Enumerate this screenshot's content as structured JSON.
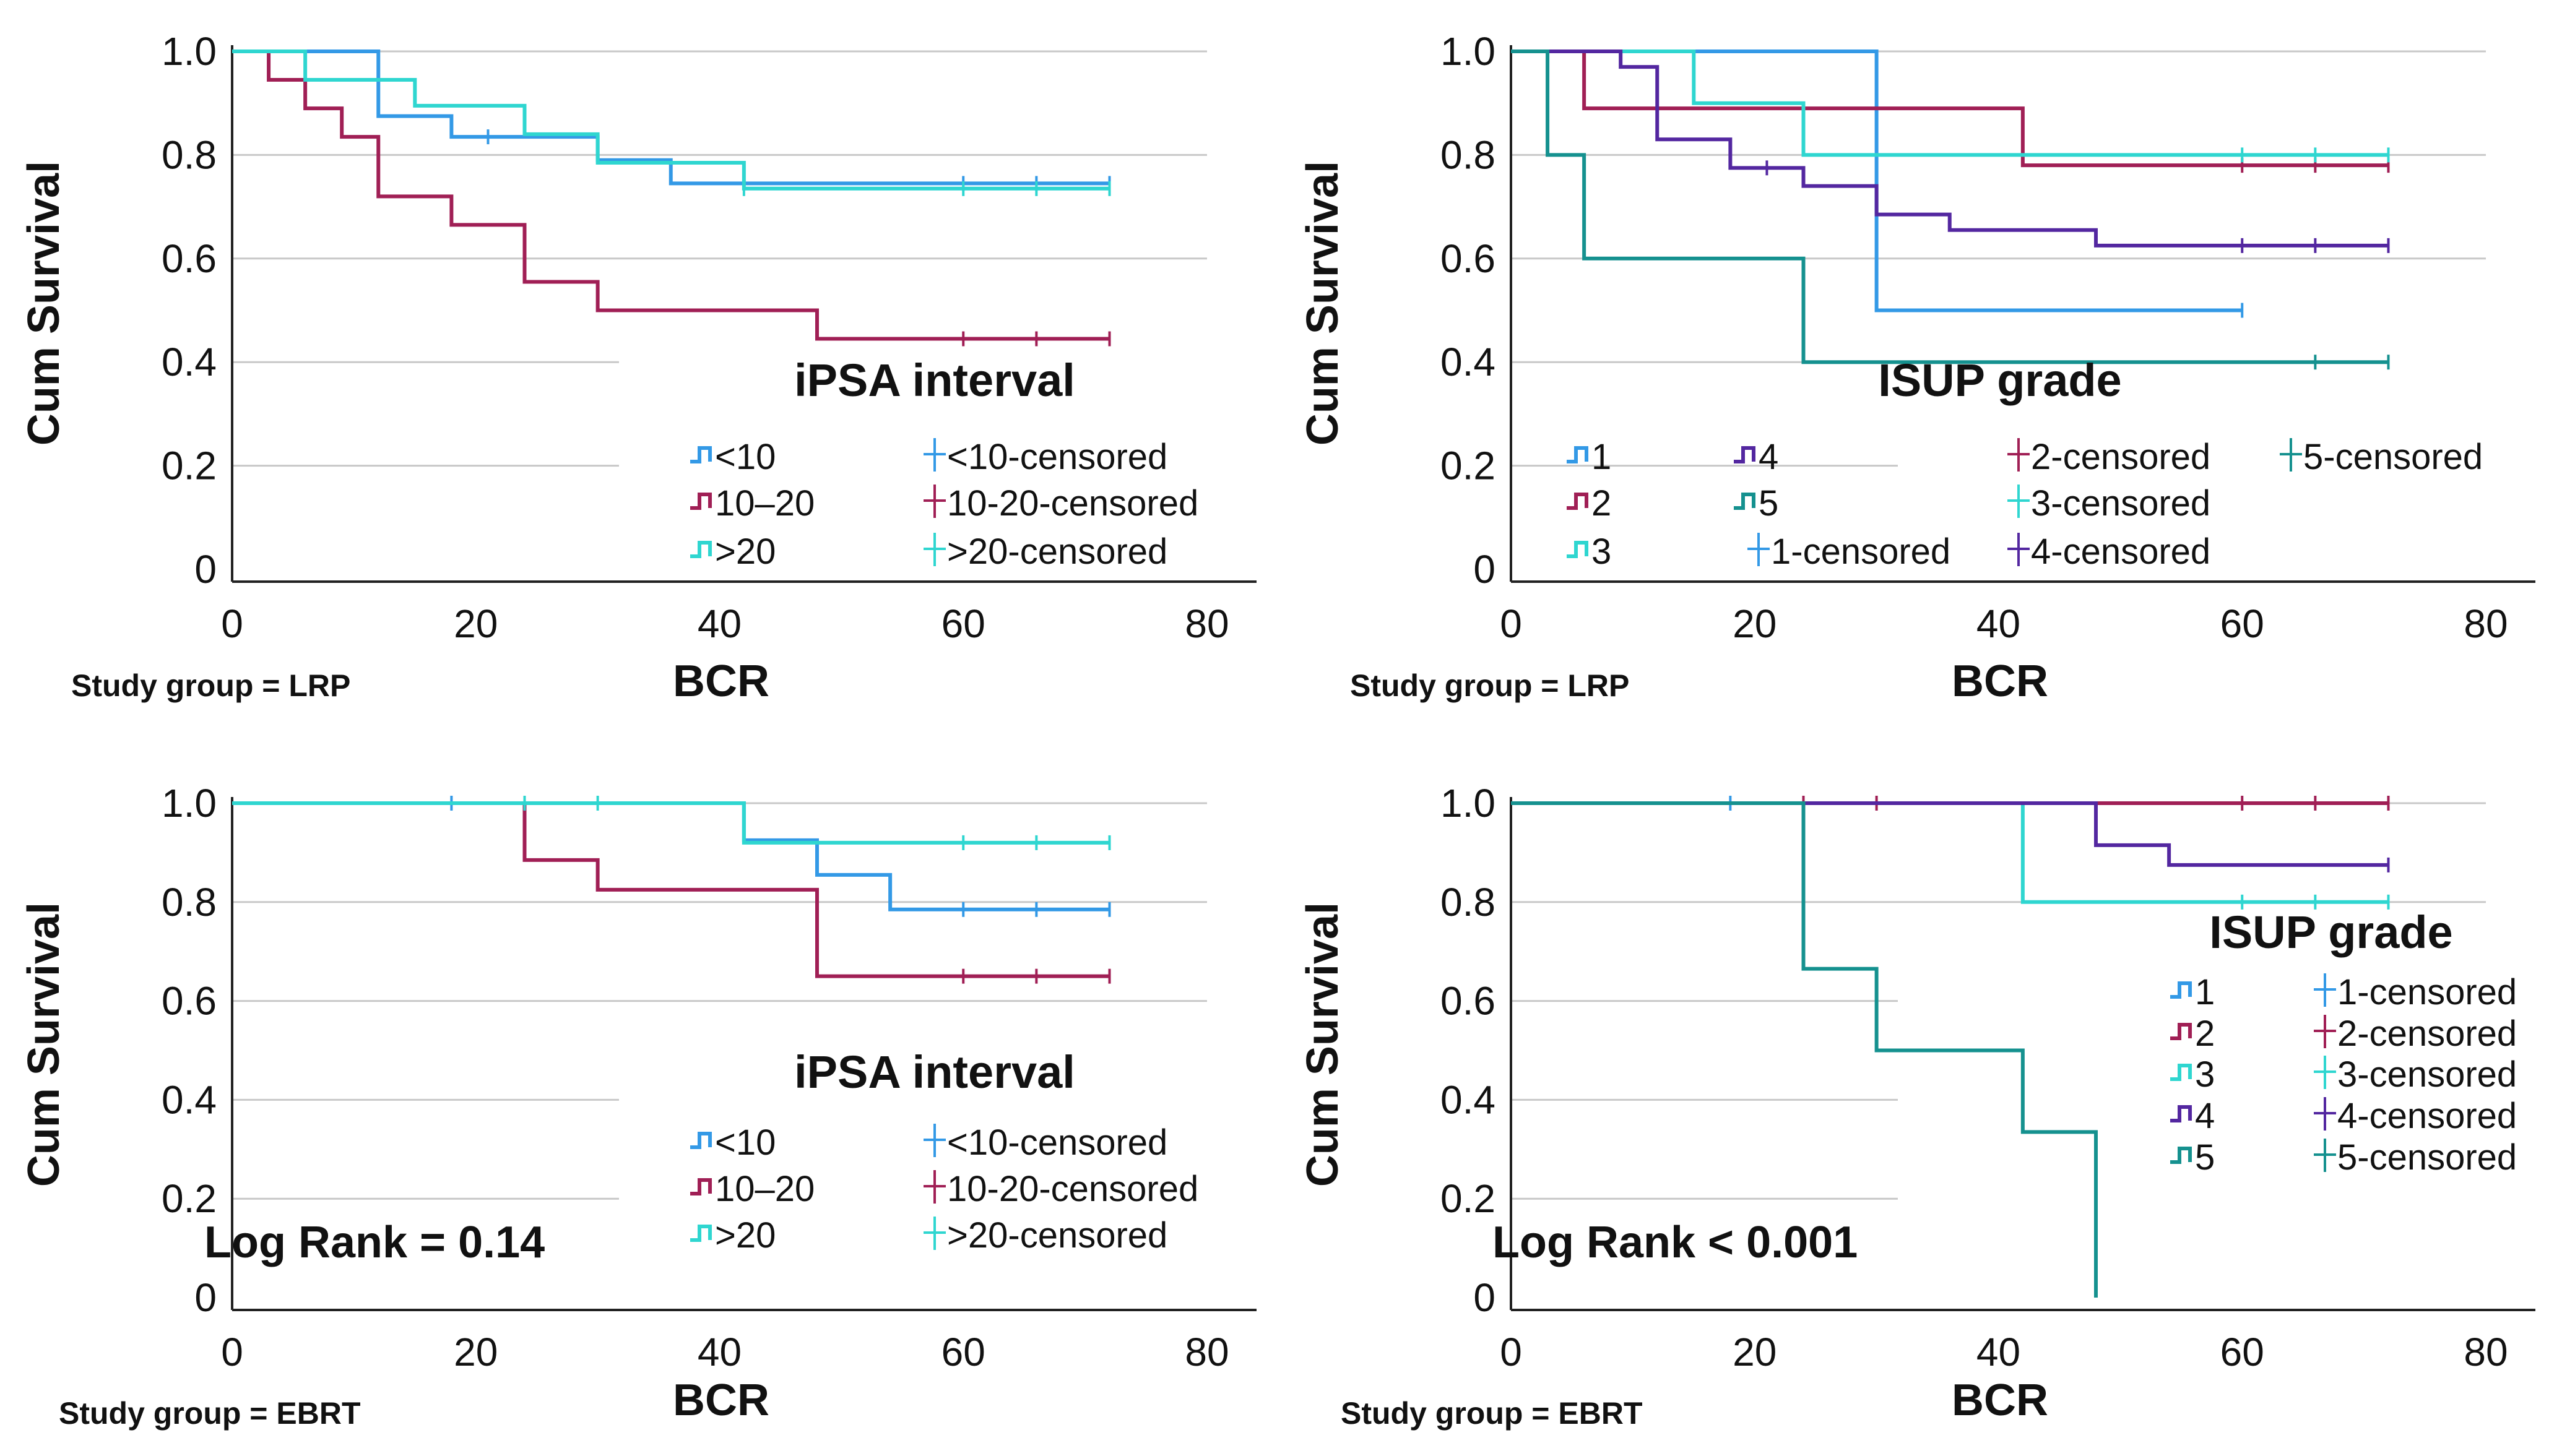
{
  "colors": {
    "c_lt10": "#3399e6",
    "c_10_20": "#a01f55",
    "c_gt20": "#2fd6d0",
    "isup1": "#3399e6",
    "isup2": "#a01f55",
    "isup3": "#2fd6d0",
    "isup4": "#5327a0",
    "isup5": "#15918f"
  },
  "chart_data": [
    {
      "type": "line",
      "panel": "top-left",
      "ylabel": "Cum Survival",
      "xlabel": "BCR",
      "caption": "Study group = LRP",
      "x_ticks": [
        "0",
        "20",
        "40",
        "60",
        "80"
      ],
      "y_ticks": [
        "0",
        "0.2",
        "0.4",
        "0.6",
        "0.8",
        "1.0"
      ],
      "xlim": [
        0,
        80
      ],
      "ylim": [
        0,
        1
      ],
      "legend_title": "iPSA interval",
      "legend_labels": [
        "<10",
        "10–20",
        ">20",
        "<10-censored",
        "10-20-censored",
        ">20-censored"
      ],
      "annotation": "",
      "series": [
        {
          "name": "<10",
          "color": "c_lt10",
          "steps": [
            [
              0,
              1.0
            ],
            [
              12,
              0.875
            ],
            [
              18,
              0.835
            ],
            [
              30,
              0.79
            ],
            [
              36,
              0.745
            ],
            [
              72,
              0.745
            ]
          ],
          "censored": [
            [
              21,
              0.835
            ],
            [
              60,
              0.745
            ],
            [
              66,
              0.745
            ],
            [
              72,
              0.745
            ]
          ]
        },
        {
          "name": "10–20",
          "color": "c_10_20",
          "steps": [
            [
              0,
              1.0
            ],
            [
              3,
              0.945
            ],
            [
              6,
              0.89
            ],
            [
              9,
              0.835
            ],
            [
              12,
              0.72
            ],
            [
              18,
              0.665
            ],
            [
              24,
              0.555
            ],
            [
              30,
              0.5
            ],
            [
              48,
              0.445
            ],
            [
              72,
              0.445
            ]
          ],
          "censored": [
            [
              60,
              0.445
            ],
            [
              66,
              0.445
            ],
            [
              72,
              0.445
            ]
          ]
        },
        {
          "name": ">20",
          "color": "c_gt20",
          "steps": [
            [
              0,
              1.0
            ],
            [
              6,
              0.945
            ],
            [
              15,
              0.895
            ],
            [
              24,
              0.84
            ],
            [
              30,
              0.785
            ],
            [
              42,
              0.735
            ],
            [
              72,
              0.735
            ]
          ],
          "censored": [
            [
              42,
              0.735
            ],
            [
              60,
              0.735
            ],
            [
              66,
              0.735
            ],
            [
              72,
              0.735
            ]
          ]
        }
      ]
    },
    {
      "type": "line",
      "panel": "top-right",
      "ylabel": "Cum Survival",
      "xlabel": "BCR",
      "caption": "Study group = LRP",
      "x_ticks": [
        "0",
        "20",
        "40",
        "60",
        "80"
      ],
      "y_ticks": [
        "0",
        "0.2",
        "0.4",
        "0.6",
        "0.8",
        "1.0"
      ],
      "xlim": [
        0,
        80
      ],
      "ylim": [
        0,
        1
      ],
      "legend_title": "ISUP grade",
      "legend_labels": [
        "1",
        "2",
        "3",
        "4",
        "5",
        "1-censored",
        "2-censored",
        "3-censored",
        "4-censored",
        "5-censored"
      ],
      "annotation": "",
      "series": [
        {
          "name": "1",
          "color": "isup1",
          "steps": [
            [
              0,
              1.0
            ],
            [
              30,
              0.5
            ],
            [
              60,
              0.5
            ]
          ],
          "censored": [
            [
              60,
              0.5
            ]
          ]
        },
        {
          "name": "2",
          "color": "isup2",
          "steps": [
            [
              0,
              1.0
            ],
            [
              6,
              0.89
            ],
            [
              42,
              0.78
            ],
            [
              72,
              0.78
            ]
          ],
          "censored": [
            [
              60,
              0.78
            ],
            [
              66,
              0.78
            ],
            [
              72,
              0.78
            ]
          ]
        },
        {
          "name": "3",
          "color": "isup3",
          "steps": [
            [
              0,
              1.0
            ],
            [
              15,
              0.9
            ],
            [
              24,
              0.8
            ],
            [
              72,
              0.8
            ]
          ],
          "censored": [
            [
              60,
              0.8
            ],
            [
              66,
              0.8
            ],
            [
              72,
              0.8
            ]
          ]
        },
        {
          "name": "4",
          "color": "isup4",
          "steps": [
            [
              0,
              1.0
            ],
            [
              9,
              0.97
            ],
            [
              12,
              0.83
            ],
            [
              18,
              0.775
            ],
            [
              24,
              0.74
            ],
            [
              30,
              0.685
            ],
            [
              36,
              0.655
            ],
            [
              48,
              0.625
            ],
            [
              72,
              0.625
            ]
          ],
          "censored": [
            [
              21,
              0.775
            ],
            [
              60,
              0.625
            ],
            [
              66,
              0.625
            ],
            [
              72,
              0.625
            ]
          ]
        },
        {
          "name": "5",
          "color": "isup5",
          "steps": [
            [
              0,
              1.0
            ],
            [
              3,
              0.8
            ],
            [
              6,
              0.6
            ],
            [
              24,
              0.4
            ],
            [
              72,
              0.4
            ]
          ],
          "censored": [
            [
              66,
              0.4
            ],
            [
              72,
              0.4
            ]
          ]
        }
      ]
    },
    {
      "type": "line",
      "panel": "bottom-left",
      "ylabel": "Cum Survival",
      "xlabel": "BCR",
      "caption": "Study group = EBRT",
      "x_ticks": [
        "0",
        "20",
        "40",
        "60",
        "80"
      ],
      "y_ticks": [
        "0",
        "0.2",
        "0.4",
        "0.6",
        "0.8",
        "1.0"
      ],
      "xlim": [
        0,
        80
      ],
      "ylim": [
        0,
        1
      ],
      "legend_title": "iPSA interval",
      "legend_labels": [
        "<10",
        "10–20",
        ">20",
        "<10-censored",
        "10-20-censored",
        ">20-censored"
      ],
      "annotation": "Log Rank = 0.14",
      "series": [
        {
          "name": "<10",
          "color": "c_lt10",
          "steps": [
            [
              0,
              1.0
            ],
            [
              42,
              0.925
            ],
            [
              48,
              0.855
            ],
            [
              54,
              0.785
            ],
            [
              72,
              0.785
            ]
          ],
          "censored": [
            [
              18,
              1.0
            ],
            [
              60,
              0.785
            ],
            [
              66,
              0.785
            ],
            [
              72,
              0.785
            ]
          ]
        },
        {
          "name": "10–20",
          "color": "c_10_20",
          "steps": [
            [
              0,
              1.0
            ],
            [
              24,
              0.885
            ],
            [
              30,
              0.825
            ],
            [
              48,
              0.65
            ],
            [
              72,
              0.65
            ]
          ],
          "censored": [
            [
              60,
              0.65
            ],
            [
              66,
              0.65
            ],
            [
              72,
              0.65
            ]
          ]
        },
        {
          "name": ">20",
          "color": "c_gt20",
          "steps": [
            [
              0,
              1.0
            ],
            [
              42,
              0.92
            ],
            [
              72,
              0.92
            ]
          ],
          "censored": [
            [
              24,
              1.0
            ],
            [
              30,
              1.0
            ],
            [
              60,
              0.92
            ],
            [
              66,
              0.92
            ],
            [
              72,
              0.92
            ]
          ]
        }
      ]
    },
    {
      "type": "line",
      "panel": "bottom-right",
      "ylabel": "Cum Survival",
      "xlabel": "BCR",
      "caption": "Study group = EBRT",
      "x_ticks": [
        "0",
        "20",
        "40",
        "60",
        "80"
      ],
      "y_ticks": [
        "0",
        "0.2",
        "0.4",
        "0.6",
        "0.8",
        "1.0"
      ],
      "xlim": [
        0,
        80
      ],
      "ylim": [
        0,
        1
      ],
      "legend_title": "ISUP grade",
      "legend_labels": [
        "1",
        "2",
        "3",
        "4",
        "5",
        "1-censored",
        "2-censored",
        "3-censored",
        "4-censored",
        "5-censored"
      ],
      "annotation": "Log Rank < 0.001",
      "series": [
        {
          "name": "1",
          "color": "isup1",
          "steps": [
            [
              0,
              1.0
            ],
            [
              42,
              1.0
            ]
          ],
          "censored": [
            [
              18,
              1.0
            ]
          ]
        },
        {
          "name": "2",
          "color": "isup2",
          "steps": [
            [
              0,
              1.0
            ],
            [
              72,
              1.0
            ]
          ],
          "censored": [
            [
              24,
              1.0
            ],
            [
              30,
              1.0
            ],
            [
              60,
              1.0
            ],
            [
              66,
              1.0
            ],
            [
              72,
              1.0
            ]
          ]
        },
        {
          "name": "3",
          "color": "isup3",
          "steps": [
            [
              0,
              1.0
            ],
            [
              42,
              0.8
            ],
            [
              72,
              0.8
            ]
          ],
          "censored": [
            [
              60,
              0.8
            ],
            [
              66,
              0.8
            ],
            [
              72,
              0.8
            ]
          ]
        },
        {
          "name": "4",
          "color": "isup4",
          "steps": [
            [
              0,
              1.0
            ],
            [
              48,
              0.915
            ],
            [
              54,
              0.875
            ],
            [
              72,
              0.875
            ]
          ],
          "censored": [
            [
              72,
              0.875
            ]
          ]
        },
        {
          "name": "5",
          "color": "isup5",
          "steps": [
            [
              0,
              1.0
            ],
            [
              24,
              0.665
            ],
            [
              30,
              0.5
            ],
            [
              42,
              0.335
            ],
            [
              48,
              0.0
            ]
          ],
          "censored": []
        }
      ]
    }
  ]
}
